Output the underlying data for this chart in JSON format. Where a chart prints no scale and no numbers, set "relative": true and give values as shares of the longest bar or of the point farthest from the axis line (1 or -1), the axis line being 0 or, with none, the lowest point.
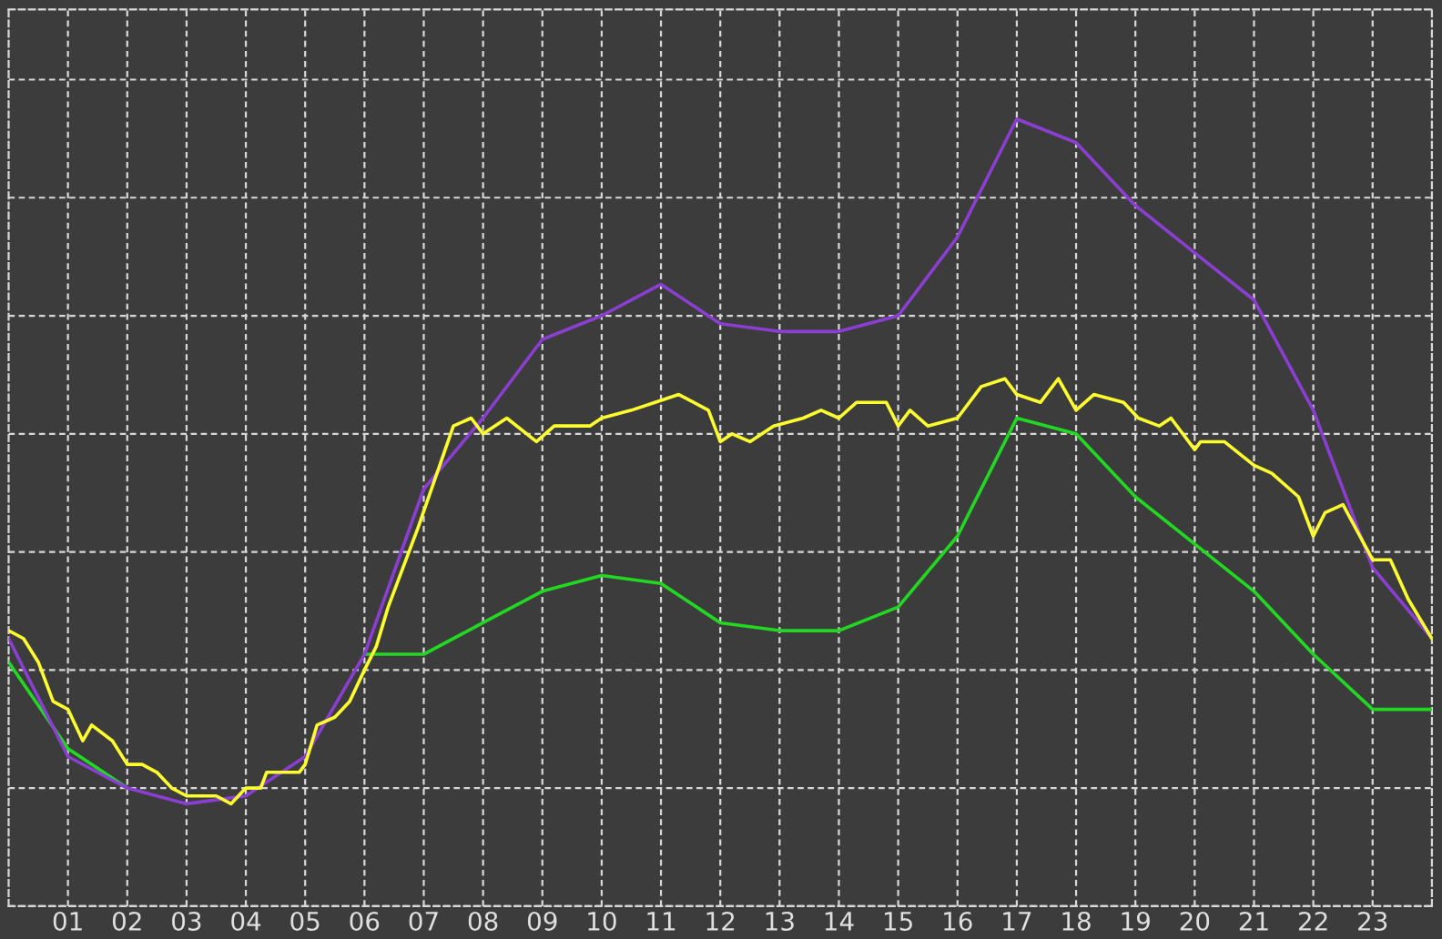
{
  "chart_data": {
    "type": "line",
    "relative": true,
    "xlim": [
      0,
      24
    ],
    "xticks": [
      {
        "value": 1,
        "label": "01"
      },
      {
        "value": 2,
        "label": "02"
      },
      {
        "value": 3,
        "label": "03"
      },
      {
        "value": 4,
        "label": "04"
      },
      {
        "value": 5,
        "label": "05"
      },
      {
        "value": 6,
        "label": "06"
      },
      {
        "value": 7,
        "label": "07"
      },
      {
        "value": 8,
        "label": "08"
      },
      {
        "value": 9,
        "label": "09"
      },
      {
        "value": 10,
        "label": "10"
      },
      {
        "value": 11,
        "label": "11"
      },
      {
        "value": 12,
        "label": "12"
      },
      {
        "value": 13,
        "label": "13"
      },
      {
        "value": 14,
        "label": "14"
      },
      {
        "value": 15,
        "label": "15"
      },
      {
        "value": 16,
        "label": "16"
      },
      {
        "value": 17,
        "label": "17"
      },
      {
        "value": 18,
        "label": "18"
      },
      {
        "value": 19,
        "label": "19"
      },
      {
        "value": 20,
        "label": "20"
      },
      {
        "value": 21,
        "label": "21"
      },
      {
        "value": 22,
        "label": "22"
      },
      {
        "value": 23,
        "label": "23"
      }
    ],
    "tick_labels": "x",
    "grid": true,
    "series": [
      {
        "color": "#22d822",
        "x": [
          0,
          1,
          2,
          3,
          4,
          5,
          6,
          7,
          8,
          9,
          10,
          11,
          12,
          13,
          14,
          15,
          16,
          17,
          18,
          19,
          20,
          21,
          22,
          23,
          24
        ],
        "values": [
          0.31,
          0.2,
          0.15,
          null,
          null,
          null,
          0.32,
          0.32,
          0.36,
          0.4,
          0.42,
          0.41,
          0.36,
          0.35,
          0.35,
          0.38,
          0.47,
          0.62,
          0.6,
          0.52,
          0.46,
          0.4,
          0.32,
          0.25,
          0.25
        ]
      },
      {
        "color": "#8a3fd0",
        "x": [
          0,
          1,
          2,
          3,
          4,
          5,
          6,
          7,
          8,
          9,
          10,
          11,
          12,
          13,
          14,
          15,
          16,
          17,
          18,
          19,
          20,
          21,
          22,
          23,
          24
        ],
        "values": [
          0.34,
          0.19,
          0.15,
          0.13,
          0.14,
          0.19,
          0.32,
          0.53,
          0.62,
          0.72,
          0.75,
          0.79,
          0.74,
          0.73,
          0.73,
          0.75,
          0.85,
          1.0,
          0.97,
          0.89,
          0.83,
          0.77,
          0.63,
          0.43,
          0.34
        ]
      },
      {
        "color": "#ffff30",
        "x": [
          0,
          0.25,
          0.5,
          0.75,
          1.0,
          1.25,
          1.4,
          1.75,
          2.0,
          2.25,
          2.5,
          2.75,
          3.0,
          3.25,
          3.5,
          3.75,
          4.0,
          4.25,
          4.35,
          4.6,
          4.9,
          5.0,
          5.2,
          5.5,
          5.75,
          6.0,
          6.2,
          6.4,
          6.9,
          7.5,
          7.8,
          8.0,
          8.4,
          8.9,
          9.2,
          9.8,
          10.0,
          10.5,
          10.9,
          11.3,
          11.8,
          12.0,
          12.2,
          12.5,
          12.9,
          13.4,
          13.7,
          14.0,
          14.3,
          14.8,
          15.0,
          15.2,
          15.5,
          16.0,
          16.4,
          16.8,
          17.0,
          17.4,
          17.7,
          18.0,
          18.3,
          18.8,
          19.05,
          19.4,
          19.6,
          20.0,
          20.1,
          20.5,
          21.0,
          21.3,
          21.75,
          22.0,
          22.2,
          22.5,
          23.0,
          23.3,
          23.6,
          24.0
        ],
        "values": [
          0.35,
          0.34,
          0.31,
          0.26,
          0.25,
          0.21,
          0.23,
          0.21,
          0.18,
          0.18,
          0.17,
          0.15,
          0.14,
          0.14,
          0.14,
          0.13,
          0.15,
          0.15,
          0.17,
          0.17,
          0.17,
          0.18,
          0.23,
          0.24,
          0.26,
          0.3,
          0.33,
          0.38,
          0.48,
          0.61,
          0.62,
          0.6,
          0.62,
          0.59,
          0.61,
          0.61,
          0.62,
          0.63,
          0.64,
          0.65,
          0.63,
          0.59,
          0.6,
          0.59,
          0.61,
          0.62,
          0.63,
          0.62,
          0.64,
          0.64,
          0.61,
          0.63,
          0.61,
          0.62,
          0.66,
          0.67,
          0.65,
          0.64,
          0.67,
          0.63,
          0.65,
          0.64,
          0.62,
          0.61,
          0.62,
          0.58,
          0.59,
          0.59,
          0.56,
          0.55,
          0.52,
          0.47,
          0.5,
          0.51,
          0.44,
          0.44,
          0.39,
          0.34
        ]
      }
    ]
  }
}
